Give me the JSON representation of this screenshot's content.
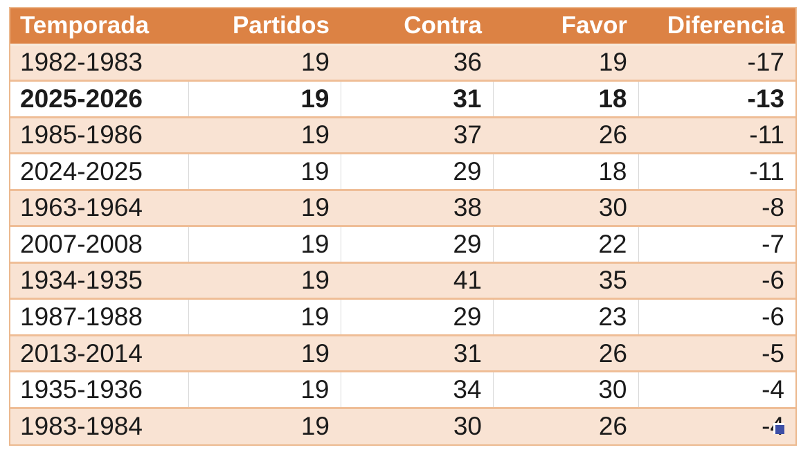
{
  "table": {
    "columns": [
      {
        "key": "temporada",
        "label": "Temporada",
        "align": "left"
      },
      {
        "key": "partidos",
        "label": "Partidos",
        "align": "right"
      },
      {
        "key": "contra",
        "label": "Contra",
        "align": "right"
      },
      {
        "key": "favor",
        "label": "Favor",
        "align": "right"
      },
      {
        "key": "diferencia",
        "label": "Diferencia",
        "align": "right"
      }
    ],
    "rows": [
      {
        "temporada": "1982-1983",
        "partidos": "19",
        "contra": "36",
        "favor": "19",
        "diferencia": "-17",
        "shaded": true,
        "bold": false
      },
      {
        "temporada": "2025-2026",
        "partidos": "19",
        "contra": "31",
        "favor": "18",
        "diferencia": "-13",
        "shaded": false,
        "bold": true
      },
      {
        "temporada": "1985-1986",
        "partidos": "19",
        "contra": "37",
        "favor": "26",
        "diferencia": "-11",
        "shaded": true,
        "bold": false
      },
      {
        "temporada": "2024-2025",
        "partidos": "19",
        "contra": "29",
        "favor": "18",
        "diferencia": "-11",
        "shaded": false,
        "bold": false
      },
      {
        "temporada": "1963-1964",
        "partidos": "19",
        "contra": "38",
        "favor": "30",
        "diferencia": "-8",
        "shaded": true,
        "bold": false
      },
      {
        "temporada": "2007-2008",
        "partidos": "19",
        "contra": "29",
        "favor": "22",
        "diferencia": "-7",
        "shaded": false,
        "bold": false
      },
      {
        "temporada": "1934-1935",
        "partidos": "19",
        "contra": "41",
        "favor": "35",
        "diferencia": "-6",
        "shaded": true,
        "bold": false
      },
      {
        "temporada": "1987-1988",
        "partidos": "19",
        "contra": "29",
        "favor": "23",
        "diferencia": "-6",
        "shaded": false,
        "bold": false
      },
      {
        "temporada": "2013-2014",
        "partidos": "19",
        "contra": "31",
        "favor": "26",
        "diferencia": "-5",
        "shaded": true,
        "bold": false
      },
      {
        "temporada": "1935-1936",
        "partidos": "19",
        "contra": "34",
        "favor": "30",
        "diferencia": "-4",
        "shaded": false,
        "bold": false
      },
      {
        "temporada": "1983-1984",
        "partidos": "19",
        "contra": "30",
        "favor": "26",
        "diferencia": "-4",
        "shaded": true,
        "bold": false
      }
    ]
  },
  "colors": {
    "header_bg": "#DC8244",
    "header_text": "#FFFFFF",
    "row_shaded_bg": "#F9E3D3",
    "row_plain_bg": "#FFFFFF",
    "row_divider": "#EFBE97",
    "gridline_gray": "#D9D9D9",
    "cell_text": "#1B1B1B",
    "fill_handle_blue": "#3E4FA6"
  },
  "fill_handle": {
    "label": "selection fill handle"
  }
}
